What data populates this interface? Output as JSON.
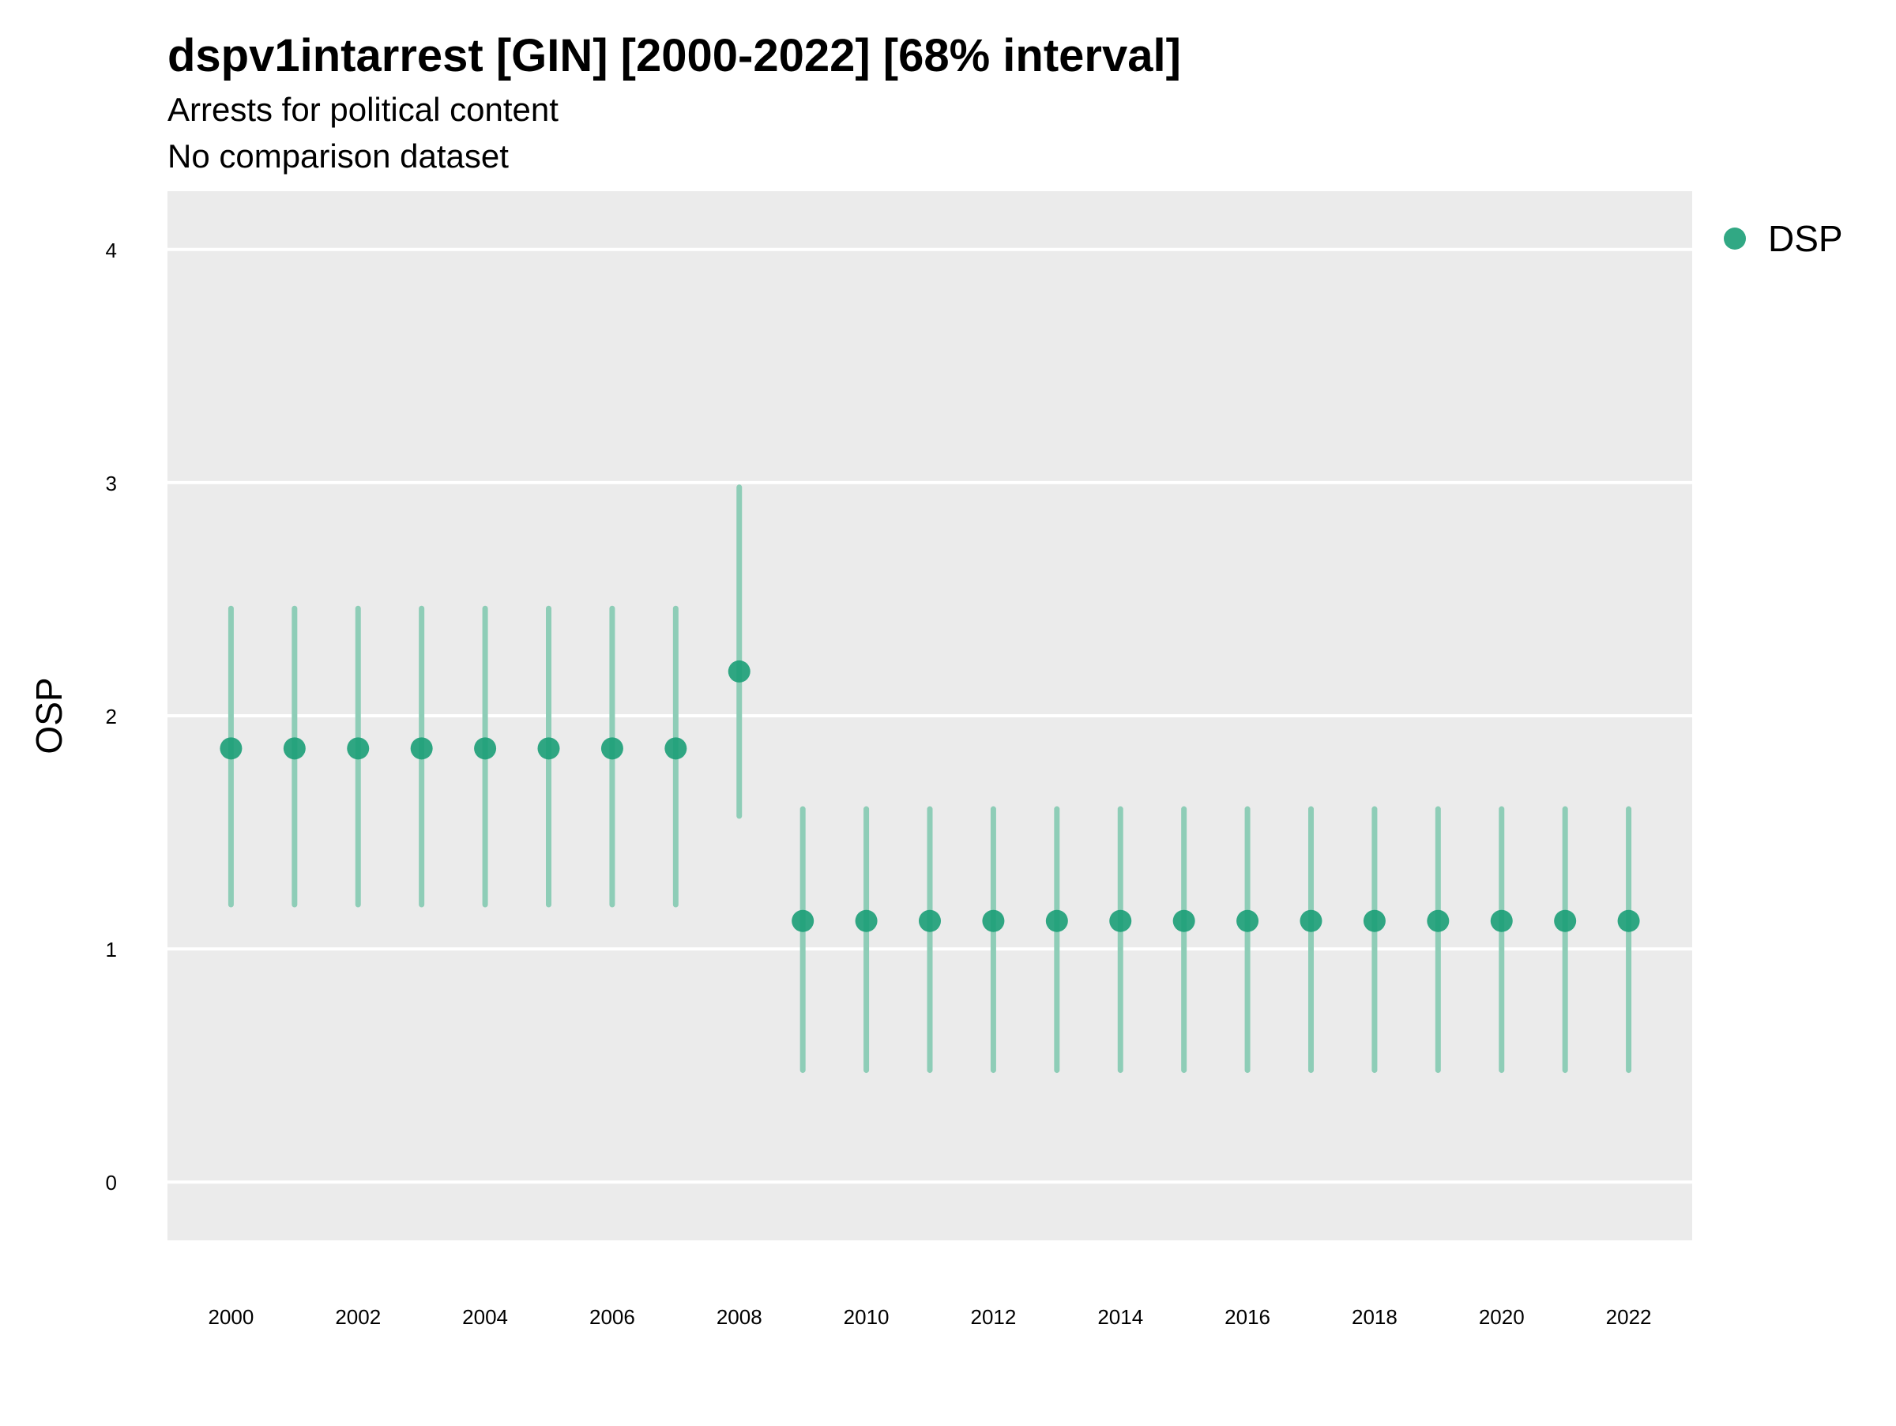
{
  "chart_data": {
    "type": "scatter",
    "subtype": "point-range",
    "title": "dspv1intarrest [GIN] [2000-2022] [68% interval]",
    "subtitle_lines": [
      "Arrests for political content",
      "No comparison dataset"
    ],
    "xlabel": "",
    "ylabel": "OSP",
    "xlim": [
      1999.0,
      2023.0
    ],
    "ylim": [
      -0.25,
      4.25
    ],
    "x_ticks": [
      2000,
      2002,
      2004,
      2006,
      2008,
      2010,
      2012,
      2014,
      2016,
      2018,
      2020,
      2022
    ],
    "y_ticks": [
      0,
      1,
      2,
      3,
      4
    ],
    "grid": true,
    "legend": {
      "position": "right",
      "entries": [
        "DSP"
      ]
    },
    "colors": {
      "point": "#1b9e77",
      "interval": "#8ecdb7",
      "panel_background": "#ebebeb",
      "gridline": "#ffffff"
    },
    "series": [
      {
        "name": "DSP",
        "x": [
          2000,
          2001,
          2002,
          2003,
          2004,
          2005,
          2006,
          2007,
          2008,
          2009,
          2010,
          2011,
          2012,
          2013,
          2014,
          2015,
          2016,
          2017,
          2018,
          2019,
          2020,
          2021,
          2022
        ],
        "y": [
          1.86,
          1.86,
          1.86,
          1.86,
          1.86,
          1.86,
          1.86,
          1.86,
          2.19,
          1.12,
          1.12,
          1.12,
          1.12,
          1.12,
          1.12,
          1.12,
          1.12,
          1.12,
          1.12,
          1.12,
          1.12,
          1.12,
          1.12
        ],
        "lower": [
          1.19,
          1.19,
          1.19,
          1.19,
          1.19,
          1.19,
          1.19,
          1.19,
          1.57,
          0.48,
          0.48,
          0.48,
          0.48,
          0.48,
          0.48,
          0.48,
          0.48,
          0.48,
          0.48,
          0.48,
          0.48,
          0.48,
          0.48
        ],
        "upper": [
          2.46,
          2.46,
          2.46,
          2.46,
          2.46,
          2.46,
          2.46,
          2.46,
          2.98,
          1.6,
          1.6,
          1.6,
          1.6,
          1.6,
          1.6,
          1.6,
          1.6,
          1.6,
          1.6,
          1.6,
          1.6,
          1.6,
          1.6
        ]
      }
    ]
  }
}
